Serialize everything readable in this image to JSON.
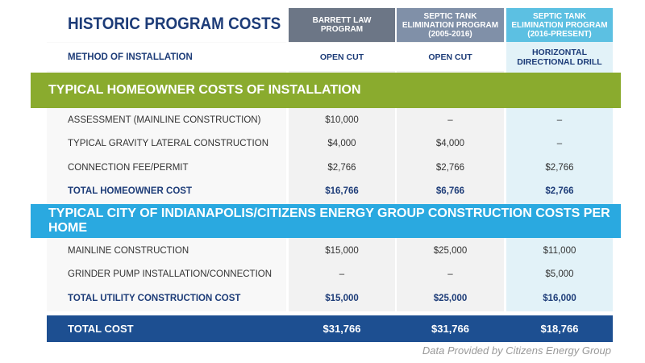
{
  "title": "HISTORIC PROGRAM COSTS",
  "columns": [
    "BARRETT LAW PROGRAM",
    "SEPTIC TANK ELIMINATION PROGRAM (2005-2016)",
    "SEPTIC TANK ELIMINATION PROGRAM (2016-PRESENT)"
  ],
  "method": {
    "label": "METHOD OF INSTALLATION",
    "values": [
      "OPEN CUT",
      "OPEN CUT",
      "HORIZONTAL DIRECTIONAL DRILL"
    ]
  },
  "sections": [
    {
      "title": "TYPICAL HOMEOWNER COSTS OF INSTALLATION",
      "rows": [
        {
          "label": "ASSESSMENT (MAINLINE CONSTRUCTION)",
          "values": [
            "$10,000",
            "–",
            "–"
          ]
        },
        {
          "label": "TYPICAL GRAVITY LATERAL CONSTRUCTION",
          "values": [
            "$4,000",
            "$4,000",
            "–"
          ]
        },
        {
          "label": "CONNECTION FEE/PERMIT",
          "values": [
            "$2,766",
            "$2,766",
            "$2,766"
          ]
        }
      ],
      "total": {
        "label": "TOTAL HOMEOWNER COST",
        "values": [
          "$16,766",
          "$6,766",
          "$2,766"
        ]
      }
    },
    {
      "title": "TYPICAL CITY OF INDIANAPOLIS/CITIZENS ENERGY GROUP CONSTRUCTION COSTS PER HOME",
      "rows": [
        {
          "label": "MAINLINE CONSTRUCTION",
          "values": [
            "$15,000",
            "$25,000",
            "$11,000"
          ]
        },
        {
          "label": "GRINDER PUMP INSTALLATION/CONNECTION",
          "values": [
            "–",
            "–",
            "$5,000"
          ]
        }
      ],
      "total": {
        "label": "TOTAL UTILITY CONSTRUCTION COST",
        "values": [
          "$15,000",
          "$25,000",
          "$16,000"
        ]
      }
    }
  ],
  "total": {
    "label": "TOTAL COST",
    "values": [
      "$31,766",
      "$31,766",
      "$18,766"
    ]
  },
  "source": "Data Provided by Citizens Energy Group"
}
